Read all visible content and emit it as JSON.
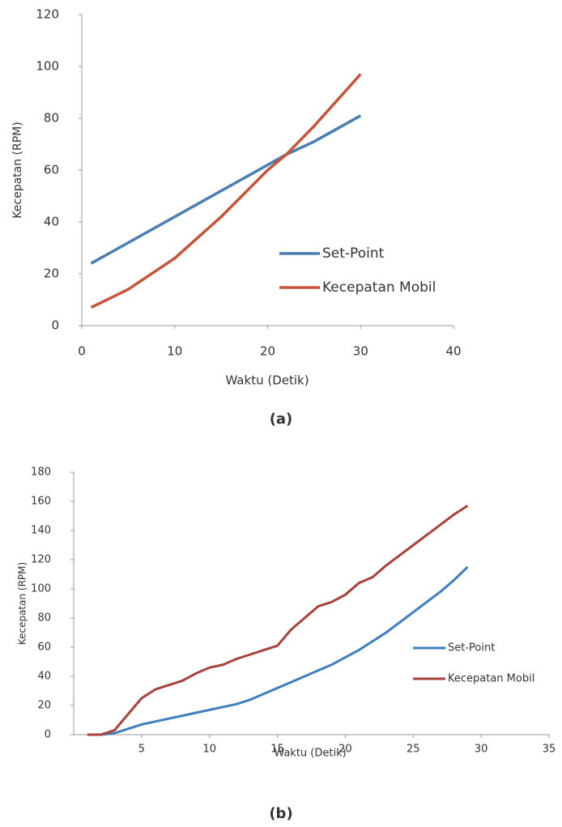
{
  "chart_data": [
    {
      "type": "line",
      "caption": "(a)",
      "x_label": "Waktu (Detik)",
      "y_label": "Kecepatan (RPM)",
      "xlim": [
        0,
        40
      ],
      "xticks": [
        0,
        10,
        20,
        30,
        40
      ],
      "ylim": [
        0,
        120
      ],
      "yticks": [
        0,
        20,
        40,
        60,
        80,
        100,
        120
      ],
      "x": [
        1,
        5,
        10,
        15,
        20,
        22,
        25,
        30
      ],
      "series": [
        {
          "name": "Set-Point",
          "color": "#4a7eb0",
          "values": [
            24,
            32,
            42,
            52,
            62,
            66,
            71,
            81
          ]
        },
        {
          "name": "Kecepatan Mobil",
          "color": "#c8553a",
          "values": [
            7,
            14,
            26,
            42,
            60,
            66,
            77,
            97
          ]
        }
      ]
    },
    {
      "type": "line",
      "caption": "(b)",
      "x_label": "Waktu (Detik)",
      "y_label": "Kecepatan (RPM)",
      "xlim": [
        0,
        35
      ],
      "xticks": [
        5,
        10,
        15,
        20,
        25,
        30,
        35
      ],
      "ylim": [
        0,
        180
      ],
      "yticks": [
        0,
        20,
        40,
        60,
        80,
        100,
        120,
        140,
        160,
        180
      ],
      "x": [
        1,
        2,
        3,
        4,
        5,
        6,
        7,
        8,
        9,
        10,
        11,
        12,
        13,
        14,
        15,
        16,
        17,
        18,
        19,
        20,
        21,
        22,
        23,
        24,
        25,
        26,
        27,
        28,
        29
      ],
      "series": [
        {
          "name": "Set-Point",
          "color": "#3f7fbf",
          "values": [
            0,
            0,
            1,
            4,
            7,
            9,
            11,
            13,
            15,
            17,
            19,
            21,
            24,
            28,
            32,
            36,
            40,
            44,
            48,
            53,
            58,
            64,
            70,
            77,
            84,
            91,
            98,
            106,
            115
          ]
        },
        {
          "name": "Kecepatan Mobil",
          "color": "#a8423a",
          "values": [
            0,
            0,
            3,
            14,
            25,
            31,
            34,
            37,
            42,
            46,
            48,
            52,
            55,
            58,
            61,
            72,
            80,
            88,
            91,
            96,
            104,
            108,
            116,
            123,
            130,
            137,
            144,
            151,
            157
          ]
        }
      ]
    }
  ]
}
